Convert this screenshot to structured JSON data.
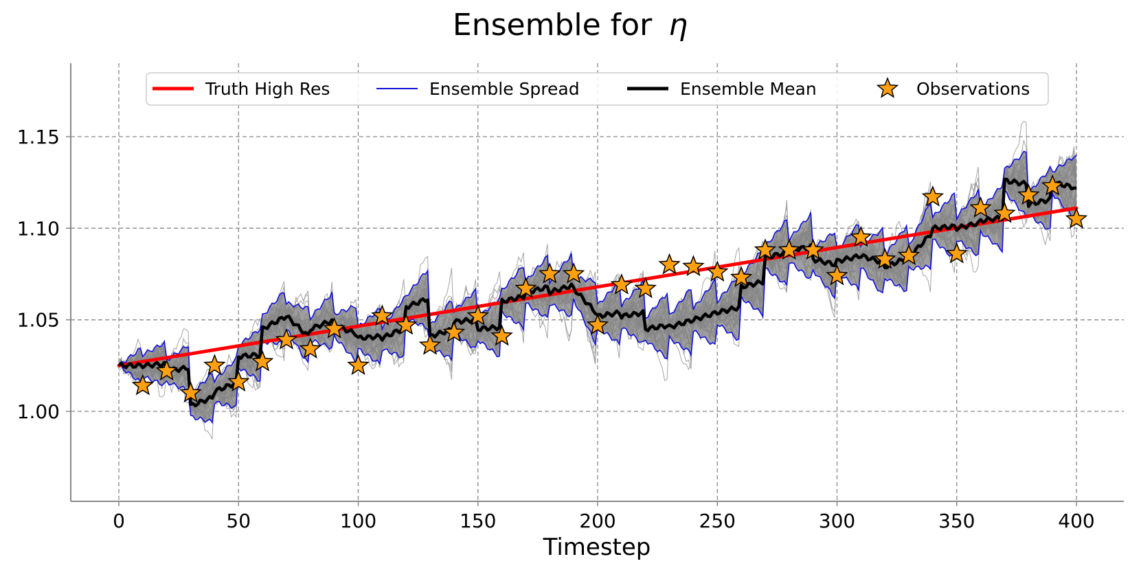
{
  "chart_data": {
    "type": "line",
    "title": "Ensemble for",
    "title_symbol": "η",
    "xlabel": "Timestep",
    "ylabel": "",
    "xlim": [
      -20,
      420
    ],
    "ylim": [
      0.95,
      1.19
    ],
    "xticks": [
      0,
      50,
      100,
      150,
      200,
      250,
      300,
      350,
      400
    ],
    "xtick_labels": [
      "0",
      "50",
      "100",
      "150",
      "200",
      "250",
      "300",
      "350",
      "400"
    ],
    "yticks": [
      1.0,
      1.05,
      1.1,
      1.15
    ],
    "ytick_labels": [
      "1.00",
      "1.05",
      "1.10",
      "1.15"
    ],
    "grid": true,
    "legend_position": "top-center",
    "legend": {
      "truth": "Truth High Res",
      "spread": "Ensemble Spread",
      "mean": "Ensemble Mean",
      "obs": "Observations"
    },
    "colors": {
      "truth": "#ff0000",
      "spread": "#1010dd",
      "mean": "#000000",
      "members": "#999999",
      "fill": "#7f7f7f",
      "obs_fill": "#ffa010",
      "obs_edge": "#000000",
      "grid": "#888888",
      "axis": "#888888"
    },
    "truth_high_res": {
      "start": [
        0,
        1.025
      ],
      "end": [
        400,
        1.111
      ]
    },
    "ensemble_size": 30,
    "observations": {
      "x": [
        10,
        20,
        30,
        40,
        50,
        60,
        70,
        80,
        90,
        100,
        110,
        120,
        130,
        140,
        150,
        160,
        170,
        180,
        190,
        200,
        210,
        220,
        230,
        240,
        250,
        260,
        270,
        280,
        290,
        300,
        310,
        320,
        330,
        340,
        350,
        360,
        370,
        380,
        390,
        400
      ],
      "y": [
        1.014,
        1.022,
        1.01,
        1.025,
        1.016,
        1.027,
        1.039,
        1.034,
        1.045,
        1.025,
        1.052,
        1.047,
        1.036,
        1.043,
        1.052,
        1.041,
        1.067,
        1.075,
        1.075,
        1.047,
        1.069,
        1.067,
        1.08,
        1.079,
        1.076,
        1.073,
        1.088,
        1.088,
        1.088,
        1.074,
        1.095,
        1.083,
        1.085,
        1.117,
        1.086,
        1.111,
        1.108,
        1.118,
        1.123,
        1.105
      ]
    },
    "ensemble_mean": {
      "cycle_start_x": [
        0,
        10,
        20,
        30,
        40,
        50,
        60,
        70,
        80,
        90,
        100,
        110,
        120,
        130,
        140,
        150,
        160,
        170,
        180,
        190,
        200,
        210,
        220,
        230,
        240,
        250,
        260,
        270,
        280,
        290,
        300,
        310,
        320,
        330,
        340,
        350,
        360,
        370,
        380,
        390
      ],
      "cycle_start_y": [
        1.025,
        1.025,
        1.022,
        1.003,
        1.011,
        1.03,
        1.045,
        1.052,
        1.045,
        1.047,
        1.04,
        1.04,
        1.057,
        1.041,
        1.049,
        1.045,
        1.06,
        1.065,
        1.065,
        1.067,
        1.052,
        1.052,
        1.045,
        1.046,
        1.05,
        1.054,
        1.068,
        1.084,
        1.088,
        1.083,
        1.082,
        1.085,
        1.079,
        1.084,
        1.1,
        1.1,
        1.104,
        1.126,
        1.113,
        1.125
      ],
      "cycle_end_y": [
        1.025,
        1.026,
        1.024,
        1.008,
        1.016,
        1.031,
        1.052,
        1.04,
        1.05,
        1.042,
        1.041,
        1.046,
        1.062,
        1.045,
        1.05,
        1.046,
        1.063,
        1.068,
        1.069,
        1.053,
        1.054,
        1.054,
        1.047,
        1.05,
        1.054,
        1.057,
        1.071,
        1.087,
        1.09,
        1.08,
        1.085,
        1.081,
        1.084,
        1.098,
        1.101,
        1.103,
        1.106,
        1.124,
        1.116,
        1.122
      ]
    },
    "ensemble_spread": {
      "cycle_start_half_width": [
        0.0,
        0.006,
        0.006,
        0.006,
        0.006,
        0.006,
        0.007,
        0.007,
        0.006,
        0.006,
        0.006,
        0.006,
        0.006,
        0.006,
        0.006,
        0.006,
        0.006,
        0.006,
        0.006,
        0.006,
        0.006,
        0.006,
        0.006,
        0.006,
        0.006,
        0.006,
        0.006,
        0.006,
        0.006,
        0.006,
        0.006,
        0.006,
        0.006,
        0.006,
        0.006,
        0.006,
        0.006,
        0.006,
        0.006,
        0.006
      ],
      "cycle_end_half_width": [
        0.01,
        0.012,
        0.013,
        0.014,
        0.014,
        0.015,
        0.015,
        0.016,
        0.016,
        0.016,
        0.016,
        0.017,
        0.017,
        0.017,
        0.017,
        0.017,
        0.018,
        0.018,
        0.018,
        0.018,
        0.018,
        0.018,
        0.019,
        0.019,
        0.019,
        0.019,
        0.019,
        0.019,
        0.019,
        0.019,
        0.019,
        0.019,
        0.019,
        0.019,
        0.019,
        0.019,
        0.019,
        0.019,
        0.018,
        0.018
      ]
    }
  }
}
